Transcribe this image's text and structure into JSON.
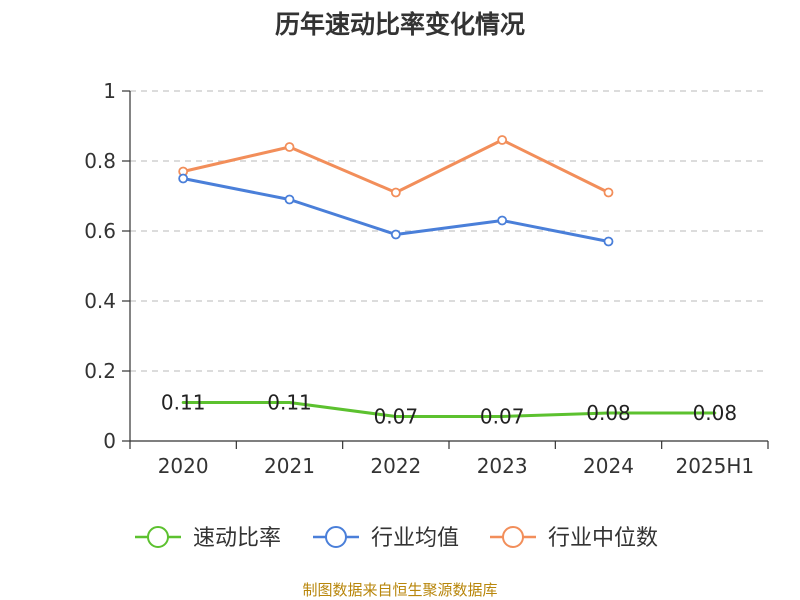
{
  "chart_data": {
    "type": "line",
    "title": "历年速动比率变化情况",
    "categories": [
      "2020",
      "2021",
      "2022",
      "2023",
      "2024",
      "2025H1"
    ],
    "ylim": [
      0,
      1
    ],
    "yticks": [
      0,
      0.2,
      0.4,
      0.6,
      0.8,
      1
    ],
    "ytick_labels": [
      "0",
      "0.2",
      "0.4",
      "0.6",
      "0.8",
      "1"
    ],
    "grid": true,
    "legend_position": "bottom",
    "series": [
      {
        "name": "速动比率",
        "color": "#5cc12f",
        "values": [
          0.11,
          0.11,
          0.07,
          0.07,
          0.08,
          0.08
        ],
        "labels": [
          "0.11",
          "0.11",
          "0.07",
          "0.07",
          "0.08",
          "0.08"
        ],
        "show_markers": false
      },
      {
        "name": "行业均值",
        "color": "#4a7fd9",
        "values": [
          0.75,
          0.69,
          0.59,
          0.63,
          0.57,
          null
        ],
        "show_markers": true
      },
      {
        "name": "行业中位数",
        "color": "#f28e5a",
        "values": [
          0.77,
          0.84,
          0.71,
          0.86,
          0.71,
          null
        ],
        "show_markers": true
      }
    ]
  },
  "footer": {
    "source": "制图数据来自恒生聚源数据库"
  }
}
